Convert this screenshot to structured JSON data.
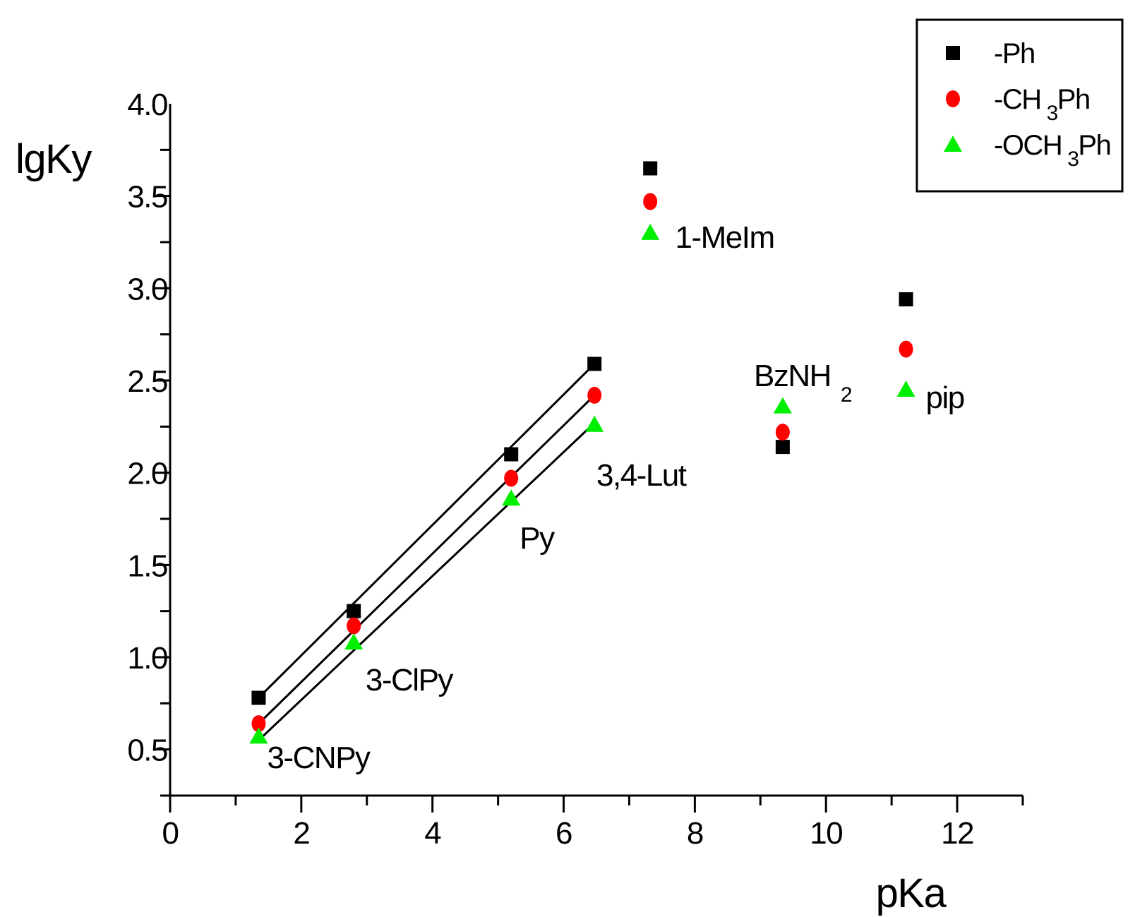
{
  "chart_data": {
    "type": "scatter",
    "title": "",
    "xlabel": "pKa",
    "ylabel": "lgKy",
    "xlim": [
      0,
      13
    ],
    "ylim": [
      0.25,
      4.0
    ],
    "x_ticks": [
      "0",
      "2",
      "4",
      "6",
      "8",
      "10",
      "12"
    ],
    "y_ticks": [
      "0.5",
      "1.0",
      "1.5",
      "2.0",
      "2.5",
      "3.0",
      "3.5",
      "4.0"
    ],
    "series": [
      {
        "name": "-Ph",
        "marker": "square",
        "color": "#000000",
        "x": [
          1.35,
          2.8,
          5.2,
          6.47,
          7.32,
          9.34,
          11.22
        ],
        "y": [
          0.78,
          1.25,
          2.1,
          2.59,
          3.65,
          2.14,
          2.94
        ]
      },
      {
        "name": "-CH3Ph",
        "legend_main": "-CH",
        "legend_sub": "3",
        "legend_tail": "Ph",
        "marker": "circle",
        "color": "#ff0000",
        "x": [
          1.35,
          2.8,
          5.2,
          6.47,
          7.32,
          9.34,
          11.22
        ],
        "y": [
          0.64,
          1.17,
          1.97,
          2.42,
          3.47,
          2.22,
          2.67
        ]
      },
      {
        "name": "-OCH3Ph",
        "legend_main": "-OCH",
        "legend_sub": "3",
        "legend_tail": "Ph",
        "marker": "triangle",
        "color": "#00ee00",
        "x": [
          1.35,
          2.8,
          5.2,
          6.47,
          7.32,
          9.34,
          11.22
        ],
        "y": [
          0.57,
          1.08,
          1.86,
          2.26,
          3.3,
          2.36,
          2.45
        ]
      }
    ],
    "fit_lines": [
      {
        "series": "-Ph",
        "x": [
          1.35,
          6.47
        ],
        "y": [
          0.78,
          2.59
        ]
      },
      {
        "series": "-CH3Ph",
        "x": [
          1.35,
          6.47
        ],
        "y": [
          0.64,
          2.42
        ]
      },
      {
        "series": "-OCH3Ph",
        "x": [
          1.35,
          6.47
        ],
        "y": [
          0.55,
          2.27
        ]
      }
    ],
    "annotations": [
      {
        "text": "3-CNPy",
        "x": 1.48,
        "y": 0.4
      },
      {
        "text": "3-ClPy",
        "x": 2.98,
        "y": 0.82
      },
      {
        "text": "Py",
        "x": 5.33,
        "y": 1.59
      },
      {
        "text": "3,4-Lut",
        "x": 6.5,
        "y": 1.93
      },
      {
        "text": "1-MeIm",
        "x": 7.7,
        "y": 3.22
      },
      {
        "text": "BzNH",
        "sub": "2",
        "x": 8.9,
        "y": 2.47
      },
      {
        "text": "pip",
        "x": 11.52,
        "y": 2.35
      }
    ],
    "legend_position": "top-right",
    "grid": false
  }
}
